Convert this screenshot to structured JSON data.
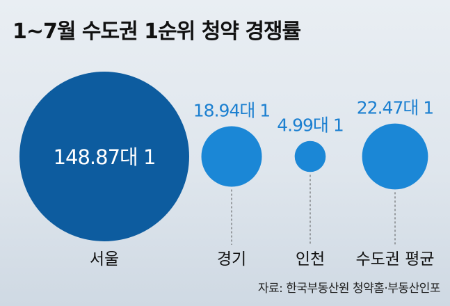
{
  "chart_data": {
    "type": "bubble",
    "title": "1~7월 수도권 1순위 청약 경쟁률",
    "unit": "대 1",
    "categories": [
      "서울",
      "경기",
      "인천",
      "수도권 평균"
    ],
    "values": [
      148.87,
      18.94,
      4.99,
      22.47
    ],
    "value_labels": [
      "148.87대 1",
      "18.94대 1",
      "4.99대 1",
      "22.47대 1"
    ],
    "source": "자료: 한국부동산원 청약홈·부동산인포",
    "colors": {
      "large": "#0d5c9f",
      "small": "#1b87d6",
      "label_text": "#1b7fd0",
      "inner_text": "#ffffff"
    }
  }
}
